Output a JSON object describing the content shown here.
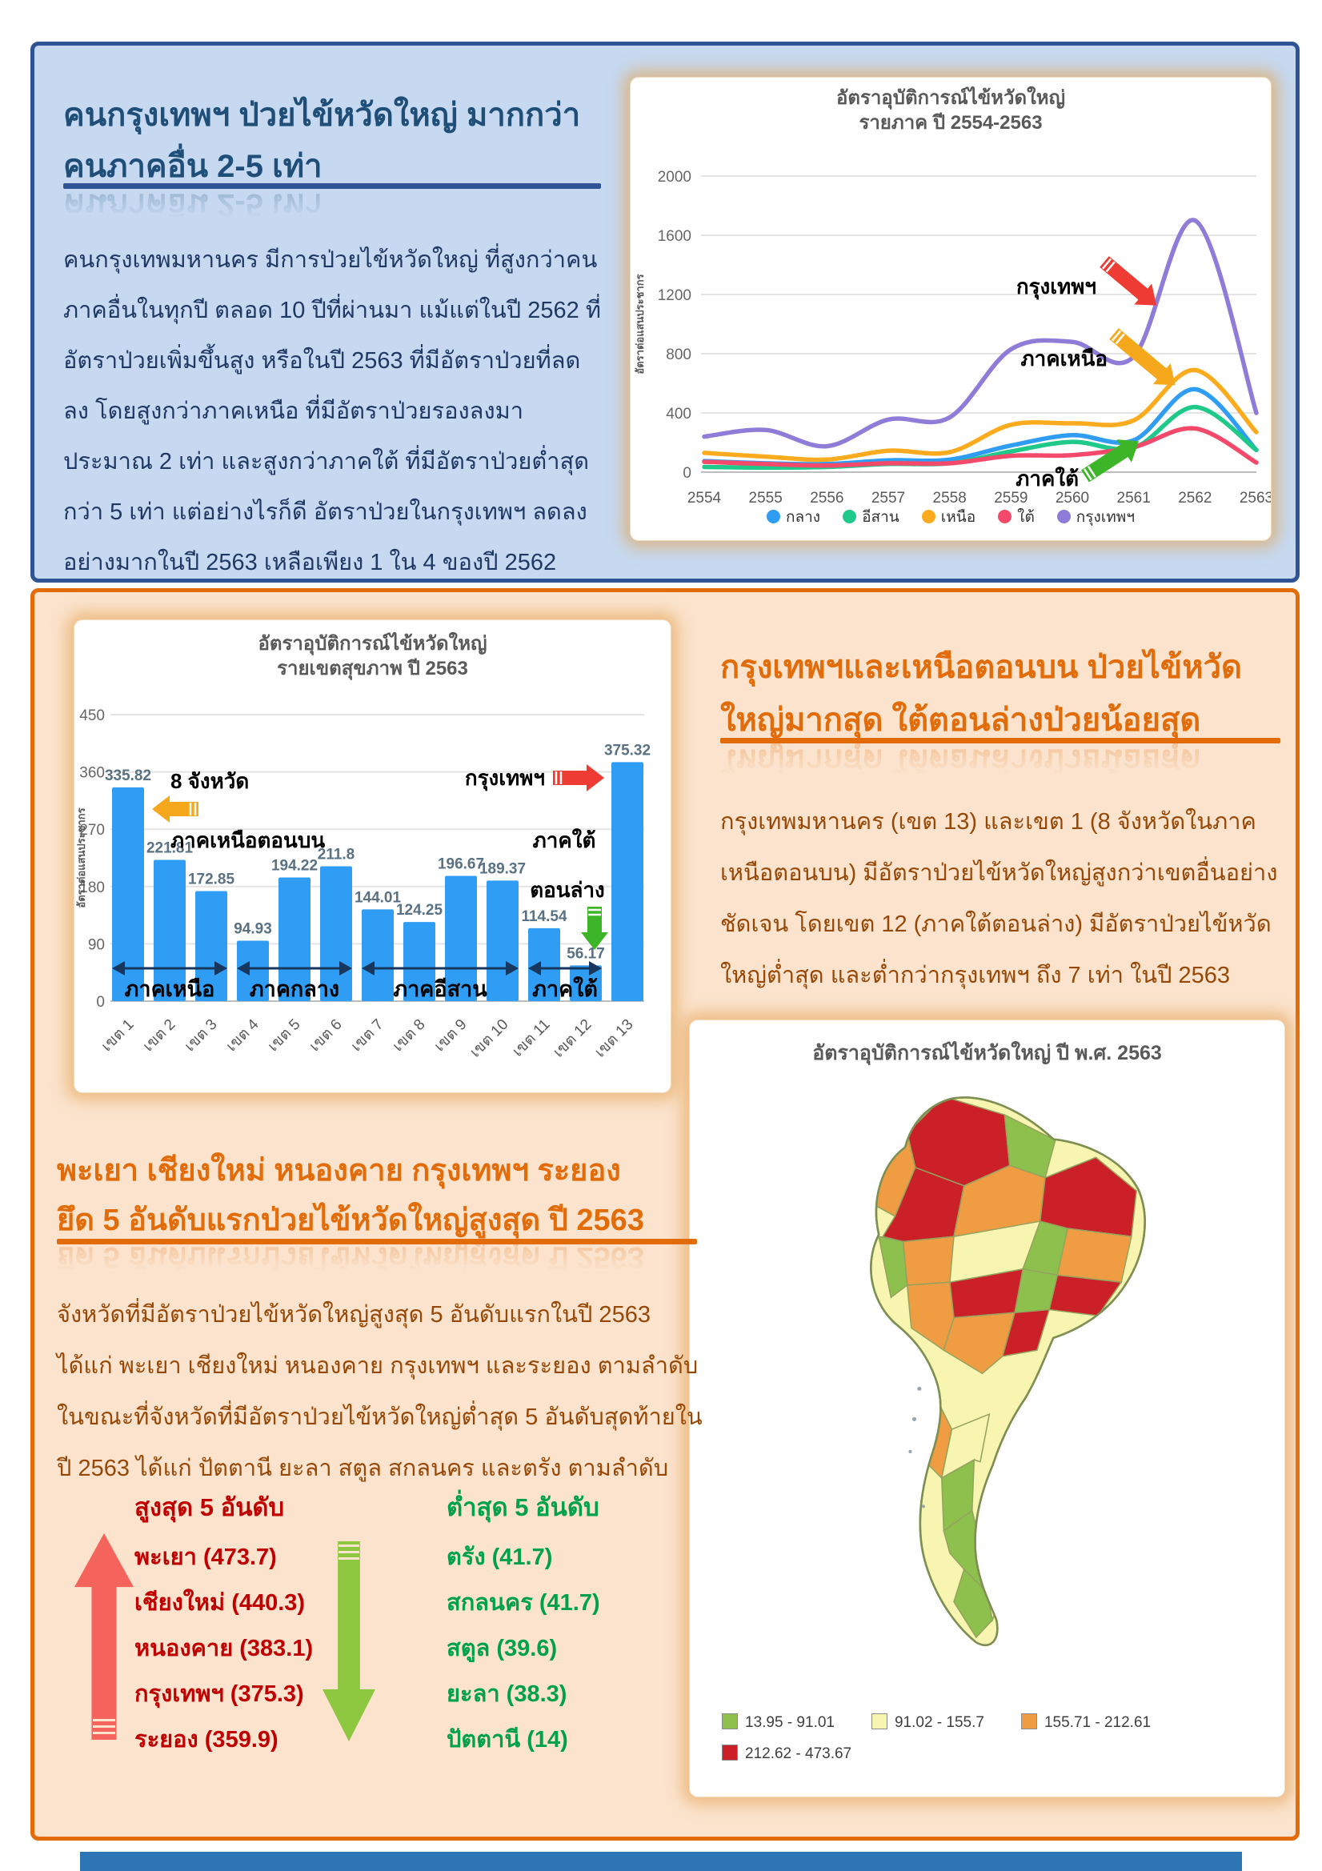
{
  "panel1": {
    "title": "คนกรุงเทพฯ ป่วยไข้หวัดใหญ่ มากกว่า\nคนภาคอื่น 2-5 เท่า",
    "body": "คนกรุงเทพมหานคร มีการป่วยไข้หวัดใหญ่ ที่สูงกว่าคนภาคอื่นในทุกปี ตลอด 10 ปีที่ผ่านมา แม้แต่ในปี 2562 ที่อัตราป่วยเพิ่มขึ้นสูง หรือในปี 2563 ที่มีอัตราป่วยที่ลดลง โดยสูงกว่าภาคเหนือ ที่มีอัตราป่วยรองลงมาประมาณ 2 เท่า และสูงกว่าภาคใต้ ที่มีอัตราป่วยต่ำสุดกว่า 5 เท่า แต่อย่างไรก็ดี อัตราป่วยในกรุงเทพฯ ลดลงอย่างมากในปี 2563 เหลือเพียง 1 ใน 4 ของปี 2562"
  },
  "panel2": {
    "title": "กรุงเทพฯและเหนือตอนบน ป่วยไข้หวัด\nใหญ่มากสุด ใต้ตอนล่างป่วยน้อยสุด",
    "body": "กรุงเทพมหานคร (เขต 13) และเขต 1 (8 จังหวัดในภาคเหนือตอนบน) มีอัตราป่วยไข้หวัดใหญ่สูงกว่าเขตอื่นอย่างชัดเจน โดยเขต 12 (ภาคใต้ตอนล่าง) มีอัตราป่วยไข้หวัดใหญ่ต่ำสุด และต่ำกว่ากรุงเทพฯ ถึง 7 เท่า ในปี 2563",
    "section_title": "พะเยา เชียงใหม่ หนองคาย กรุงเทพฯ ระยอง\nยึด 5 อันดับแรกป่วยไข้หวัดใหญ่สูงสุด ปี 2563",
    "section_body": "จังหวัดที่มีอัตราป่วยไข้หวัดใหญ่สูงสุด 5 อันดับแรกในปี 2563 ได้แก่ พะเยา เชียงใหม่ หนองคาย กรุงเทพฯ และระยอง ตามลำดับ ในขณะที่จังหวัดที่มีอัตราป่วยไข้หวัดใหญ่ต่ำสุด 5 อันดับสุดท้ายในปี 2563 ได้แก่ ปัตตานี ยะลา สตูล สกลนคร และตรัง ตามลำดับ",
    "top5": {
      "heading": "สูงสุด 5 อันดับ",
      "items": [
        {
          "name": "พะเยา",
          "value": "473.7"
        },
        {
          "name": "เชียงใหม่",
          "value": "440.3"
        },
        {
          "name": "หนองคาย",
          "value": "383.1"
        },
        {
          "name": "กรุงเทพฯ",
          "value": "375.3"
        },
        {
          "name": "ระยอง",
          "value": "359.9"
        }
      ]
    },
    "bottom5": {
      "heading": "ต่ำสุด 5 อันดับ",
      "items": [
        {
          "name": "ตรัง",
          "value": "41.7"
        },
        {
          "name": "สกลนคร",
          "value": "41.7"
        },
        {
          "name": "สตูล",
          "value": "39.6"
        },
        {
          "name": "ยะลา",
          "value": "38.3"
        },
        {
          "name": "ปัตตานี",
          "value": "14"
        }
      ]
    }
  },
  "chart_data": [
    {
      "type": "line",
      "title": "อัตราอุบัติการณ์ไข้หวัดใหญ่\nรายภาค ปี 2554-2563",
      "ylabel": "อัตราต่อแสนประชากร",
      "x": [
        "2554",
        "2555",
        "2556",
        "2557",
        "2558",
        "2559",
        "2560",
        "2561",
        "2562",
        "2563"
      ],
      "yticks": [
        0,
        400,
        800,
        1200,
        1600,
        2000
      ],
      "ylim": [
        0,
        2000
      ],
      "grid": true,
      "legend_position": "bottom",
      "series": [
        {
          "name": "กลาง",
          "color": "#2e9df3",
          "values": [
            75,
            60,
            55,
            80,
            85,
            180,
            250,
            215,
            560,
            150
          ]
        },
        {
          "name": "อีสาน",
          "color": "#1ec98a",
          "values": [
            35,
            30,
            35,
            55,
            60,
            140,
            205,
            165,
            440,
            150
          ]
        },
        {
          "name": "เหนือ",
          "color": "#fbab1d",
          "values": [
            130,
            105,
            85,
            145,
            135,
            320,
            330,
            350,
            690,
            270
          ]
        },
        {
          "name": "ใต้",
          "color": "#f4496b",
          "values": [
            70,
            55,
            45,
            60,
            60,
            110,
            115,
            170,
            295,
            65
          ]
        },
        {
          "name": "กรุงเทพฯ",
          "color": "#8e7cd8",
          "values": [
            240,
            285,
            175,
            355,
            370,
            830,
            880,
            780,
            1700,
            400
          ]
        }
      ],
      "annotations": [
        {
          "label": "กรุงเทพฯ",
          "arrow": "red"
        },
        {
          "label": "ภาคเหนือ",
          "arrow": "orange"
        },
        {
          "label": "ภาคใต้",
          "arrow": "green"
        }
      ]
    },
    {
      "type": "bar",
      "title": "อัตราอุบัติการณ์ไข้หวัดใหญ่\nรายเขตสุขภาพ ปี 2563",
      "ylabel": "อัตราต่อแสนประชากร",
      "categories": [
        "เขต 1",
        "เขต 2",
        "เขต 3",
        "เขต 4",
        "เขต 5",
        "เขต 6",
        "เขต 7",
        "เขต 8",
        "เขต 9",
        "เขต 10",
        "เขต 11",
        "เขต 12",
        "เขต 13"
      ],
      "values": [
        335.82,
        221.81,
        172.85,
        94.93,
        194.22,
        211.8,
        144.01,
        124.25,
        196.67,
        189.37,
        114.54,
        56.17,
        375.32
      ],
      "yticks": [
        0,
        90,
        180,
        270,
        360,
        450
      ],
      "ylim": [
        0,
        450
      ],
      "bar_color": "#2e9df3",
      "region_spans": [
        {
          "label": "ภาคเหนือ",
          "from": 1,
          "to": 3
        },
        {
          "label": "ภาคกลาง",
          "from": 4,
          "to": 6
        },
        {
          "label": "ภาคอีสาน",
          "from": 7,
          "to": 10
        },
        {
          "label": "ภาคใต้",
          "from": 11,
          "to": 12
        }
      ],
      "annotations": [
        {
          "label_line1": "8 จังหวัด",
          "label_line2": "ภาคเหนือตอนบน",
          "arrow": "orange-left"
        },
        {
          "label": "กรุงเทพฯ",
          "arrow": "red-right"
        },
        {
          "label_line1": "ภาคใต้",
          "label_line2": "ตอนล่าง",
          "arrow": "green-down"
        }
      ]
    }
  ],
  "map": {
    "title": "อัตราอุบัติการณ์ไข้หวัดใหญ่ ปี พ.ศ. 2563",
    "legend": [
      {
        "range": "13.95 - 91.01",
        "color": "#8dc04d"
      },
      {
        "range": "91.02 - 155.7",
        "color": "#f8f5b0"
      },
      {
        "range": "155.71 - 212.61",
        "color": "#f09c42"
      },
      {
        "range": "212.62 - 473.67",
        "color": "#cb2027"
      }
    ]
  },
  "colors": {
    "panel1_bg": "#c6d9f0",
    "panel1_border": "#2f5496",
    "panel1_title": "#1f4e79",
    "panel1_text": "#1f3864",
    "panel2_bg": "#fbe3cd",
    "panel2_border": "#e36c0a",
    "panel2_title": "#e36c0a",
    "panel2_text": "#974806",
    "top5_red": "#c00000",
    "bottom5_green": "#00a14b",
    "up_arrow": "#f4645c",
    "down_arrow": "#8dc63f",
    "annotation_red": "#ee3b33",
    "annotation_orange": "#f5a81c",
    "annotation_green": "#3db528",
    "region_arrow_navy": "#17375e",
    "footer_bar": "#2e75b6"
  }
}
